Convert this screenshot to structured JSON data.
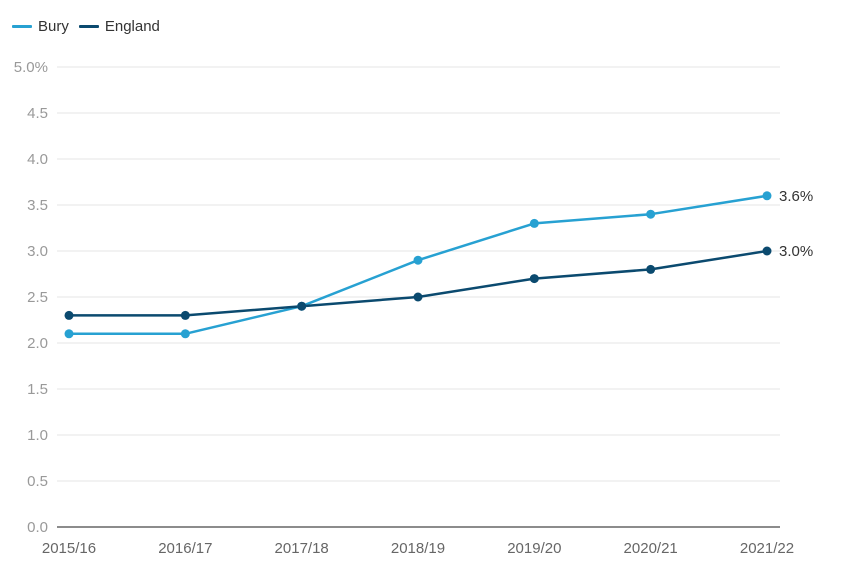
{
  "chart_data": {
    "type": "line",
    "categories": [
      "2015/16",
      "2016/17",
      "2017/18",
      "2018/19",
      "2019/20",
      "2020/21",
      "2021/22"
    ],
    "series": [
      {
        "name": "Bury",
        "color": "#27a1d2",
        "values": [
          2.1,
          2.1,
          2.4,
          2.9,
          3.3,
          3.4,
          3.6
        ],
        "end_label": "3.6%"
      },
      {
        "name": "England",
        "color": "#0b4a6f",
        "values": [
          2.3,
          2.3,
          2.4,
          2.5,
          2.7,
          2.8,
          3.0
        ],
        "end_label": "3.0%"
      }
    ],
    "ylim": [
      0,
      5
    ],
    "y_ticks": [
      "0.0",
      "0.5",
      "1.0",
      "1.5",
      "2.0",
      "2.5",
      "3.0",
      "3.5",
      "4.0",
      "4.5",
      "5.0%"
    ],
    "grid": true,
    "legend_position": "top-left"
  }
}
